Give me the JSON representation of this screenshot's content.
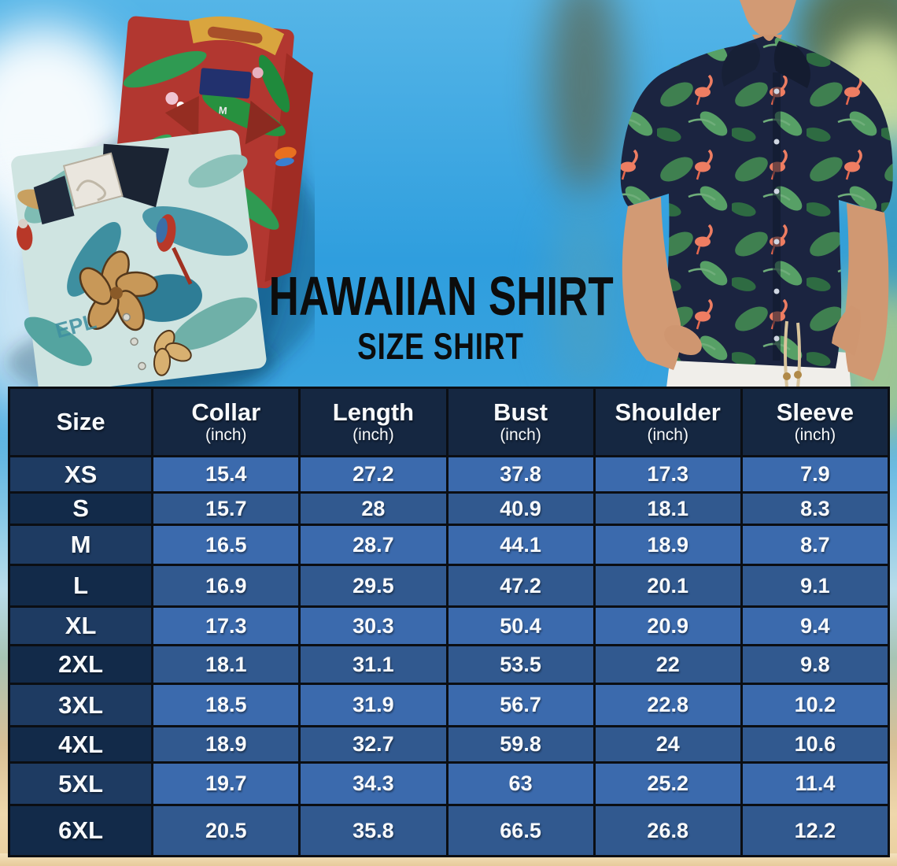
{
  "title": "HAWAIIAN SHIRT",
  "subtitle": "SIZE SHIRT",
  "chart_data": {
    "type": "table",
    "title": "Hawaiian Shirt Size Shirt",
    "columns": [
      "Size",
      "Collar (inch)",
      "Length (inch)",
      "Bust (inch)",
      "Shoulder (inch)",
      "Sleeve (inch)"
    ],
    "rows": [
      [
        "XS",
        "15.4",
        "27.2",
        "37.8",
        "17.3",
        "7.9"
      ],
      [
        "S",
        "15.7",
        "28",
        "40.9",
        "18.1",
        "8.3"
      ],
      [
        "M",
        "16.5",
        "28.7",
        "44.1",
        "18.9",
        "8.7"
      ],
      [
        "L",
        "16.9",
        "29.5",
        "47.2",
        "20.1",
        "9.1"
      ],
      [
        "XL",
        "17.3",
        "30.3",
        "50.4",
        "20.9",
        "9.4"
      ],
      [
        "2XL",
        "18.1",
        "31.1",
        "53.5",
        "22",
        "9.8"
      ],
      [
        "3XL",
        "18.5",
        "31.9",
        "56.7",
        "22.8",
        "10.2"
      ],
      [
        "4XL",
        "18.9",
        "32.7",
        "59.8",
        "24",
        "10.6"
      ],
      [
        "5XL",
        "19.7",
        "34.3",
        "63",
        "25.2",
        "11.4"
      ],
      [
        "6XL",
        "20.5",
        "35.8",
        "66.5",
        "26.8",
        "12.2"
      ]
    ]
  },
  "table": {
    "headers": [
      {
        "label": "Size",
        "unit": ""
      },
      {
        "label": "Collar",
        "unit": "(inch)"
      },
      {
        "label": "Length",
        "unit": "(inch)"
      },
      {
        "label": "Bust",
        "unit": "(inch)"
      },
      {
        "label": "Shoulder",
        "unit": "(inch)"
      },
      {
        "label": "Sleeve",
        "unit": "(inch)"
      }
    ]
  },
  "illustrations": {
    "left": "folded-red-and-teal-hawaiian-shirts-photo",
    "right": "man-wearing-navy-flamingo-hawaiian-shirt-photo",
    "red_shirt_size_tag": "M",
    "teal_shirt_print_text": "EPL"
  },
  "colors": {
    "header_bg": "#152741",
    "size_col_light": "#1e3b62",
    "size_col_dark": "#122a49",
    "cell_light": "#3b6aad",
    "cell_dark": "#31598f",
    "cell_border": "#0b0e13",
    "table_text": "#f8fafc",
    "title_text": "#0c0c0c",
    "sky": "#2f9ede",
    "sand": "#e9cf9e"
  }
}
